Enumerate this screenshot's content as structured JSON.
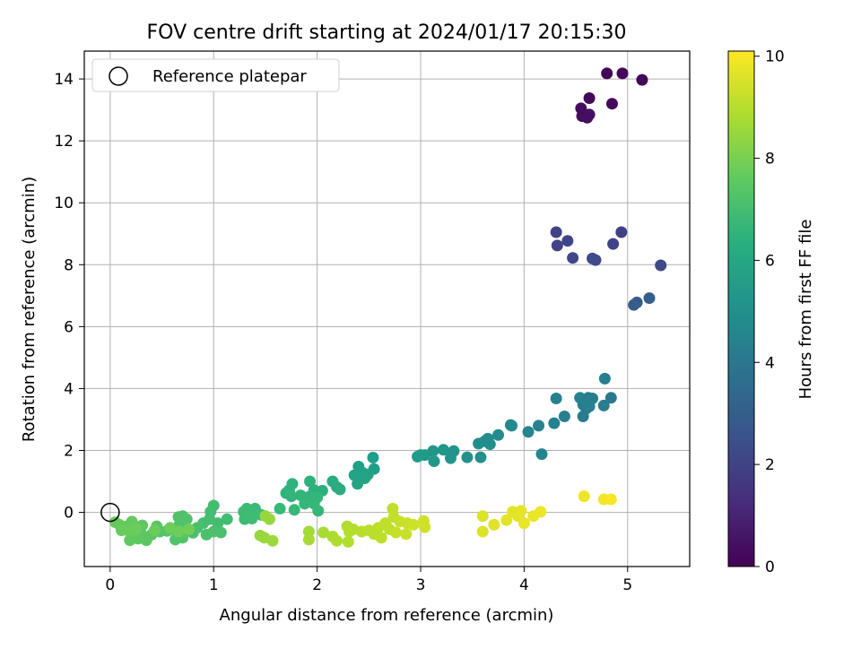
{
  "chart_data": {
    "type": "scatter",
    "title": "FOV centre drift starting at 2024/01/17 20:15:30",
    "xlabel": "Angular distance from reference (arcmin)",
    "ylabel": "Rotation from reference (arcmin)",
    "xlim": [
      -0.25,
      5.6
    ],
    "ylim": [
      -1.75,
      14.9
    ],
    "xticks": [
      "0",
      "1",
      "2",
      "3",
      "4",
      "5"
    ],
    "yticks": [
      "0",
      "2",
      "4",
      "6",
      "8",
      "10",
      "12",
      "14"
    ],
    "grid": true,
    "legend": {
      "location": "upper-left",
      "entries": [
        "Reference platepar"
      ]
    },
    "reference_point": {
      "x": 0,
      "y": 0
    },
    "colorbar": {
      "label": "Hours from first FF file",
      "colormap": "viridis",
      "range": [
        0,
        10.1
      ],
      "ticks": [
        "0",
        "2",
        "4",
        "6",
        "8",
        "10"
      ]
    },
    "points": [
      {
        "x": 4.8,
        "y": 14.18,
        "h": 0.1
      },
      {
        "x": 4.95,
        "y": 14.18,
        "h": 0.15
      },
      {
        "x": 5.14,
        "y": 13.97,
        "h": 0.2
      },
      {
        "x": 4.63,
        "y": 13.38,
        "h": 0.2
      },
      {
        "x": 4.85,
        "y": 13.2,
        "h": 0.25
      },
      {
        "x": 4.55,
        "y": 13.05,
        "h": 0.3
      },
      {
        "x": 4.56,
        "y": 12.8,
        "h": 0.3
      },
      {
        "x": 4.61,
        "y": 12.75,
        "h": 0.35
      },
      {
        "x": 4.63,
        "y": 12.85,
        "h": 0.4
      },
      {
        "x": 4.31,
        "y": 9.05,
        "h": 2.0
      },
      {
        "x": 4.32,
        "y": 8.62,
        "h": 2.05
      },
      {
        "x": 4.42,
        "y": 8.77,
        "h": 2.1
      },
      {
        "x": 4.47,
        "y": 8.22,
        "h": 2.15
      },
      {
        "x": 4.66,
        "y": 8.2,
        "h": 2.2
      },
      {
        "x": 4.69,
        "y": 8.15,
        "h": 2.25
      },
      {
        "x": 4.86,
        "y": 8.67,
        "h": 2.0
      },
      {
        "x": 4.94,
        "y": 9.05,
        "h": 1.95
      },
      {
        "x": 5.32,
        "y": 7.98,
        "h": 2.2
      },
      {
        "x": 5.06,
        "y": 6.7,
        "h": 2.9
      },
      {
        "x": 5.09,
        "y": 6.78,
        "h": 2.95
      },
      {
        "x": 5.21,
        "y": 6.92,
        "h": 3.0
      },
      {
        "x": 4.78,
        "y": 4.32,
        "h": 4.3
      },
      {
        "x": 4.84,
        "y": 3.7,
        "h": 4.1
      },
      {
        "x": 4.31,
        "y": 3.68,
        "h": 4.4
      },
      {
        "x": 4.54,
        "y": 3.7,
        "h": 4.5
      },
      {
        "x": 4.57,
        "y": 3.48,
        "h": 4.4
      },
      {
        "x": 4.62,
        "y": 3.7,
        "h": 4.3
      },
      {
        "x": 4.66,
        "y": 3.68,
        "h": 4.3
      },
      {
        "x": 4.6,
        "y": 3.35,
        "h": 4.35
      },
      {
        "x": 4.63,
        "y": 3.42,
        "h": 4.4
      },
      {
        "x": 4.77,
        "y": 3.45,
        "h": 4.3
      },
      {
        "x": 4.57,
        "y": 3.1,
        "h": 4.25
      },
      {
        "x": 4.39,
        "y": 3.1,
        "h": 4.4
      },
      {
        "x": 4.29,
        "y": 2.88,
        "h": 4.45
      },
      {
        "x": 4.14,
        "y": 2.8,
        "h": 4.5
      },
      {
        "x": 4.04,
        "y": 2.6,
        "h": 4.55
      },
      {
        "x": 4.17,
        "y": 1.88,
        "h": 4.6
      },
      {
        "x": 3.87,
        "y": 2.82,
        "h": 4.7
      },
      {
        "x": 3.88,
        "y": 2.8,
        "h": 4.75
      },
      {
        "x": 3.75,
        "y": 2.5,
        "h": 4.85
      },
      {
        "x": 3.65,
        "y": 2.38,
        "h": 4.9
      },
      {
        "x": 3.62,
        "y": 2.3,
        "h": 4.95
      },
      {
        "x": 3.67,
        "y": 2.2,
        "h": 5.0
      },
      {
        "x": 3.56,
        "y": 2.22,
        "h": 5.0
      },
      {
        "x": 3.58,
        "y": 1.78,
        "h": 5.05
      },
      {
        "x": 3.45,
        "y": 1.78,
        "h": 5.1
      },
      {
        "x": 3.32,
        "y": 1.98,
        "h": 5.2
      },
      {
        "x": 3.29,
        "y": 1.75,
        "h": 5.25
      },
      {
        "x": 3.22,
        "y": 2.02,
        "h": 5.3
      },
      {
        "x": 3.12,
        "y": 1.98,
        "h": 5.35
      },
      {
        "x": 3.13,
        "y": 1.65,
        "h": 5.4
      },
      {
        "x": 3.04,
        "y": 1.85,
        "h": 5.45
      },
      {
        "x": 3.0,
        "y": 1.85,
        "h": 5.5
      },
      {
        "x": 2.97,
        "y": 1.8,
        "h": 5.55
      },
      {
        "x": 2.54,
        "y": 1.77,
        "h": 5.6
      },
      {
        "x": 2.55,
        "y": 1.4,
        "h": 5.65
      },
      {
        "x": 2.4,
        "y": 1.48,
        "h": 5.7
      },
      {
        "x": 2.44,
        "y": 1.28,
        "h": 5.75
      },
      {
        "x": 2.49,
        "y": 1.22,
        "h": 5.8
      },
      {
        "x": 2.36,
        "y": 1.2,
        "h": 5.85
      },
      {
        "x": 2.39,
        "y": 0.92,
        "h": 5.9
      },
      {
        "x": 2.46,
        "y": 1.1,
        "h": 5.9
      },
      {
        "x": 2.15,
        "y": 1.0,
        "h": 6.2
      },
      {
        "x": 2.19,
        "y": 0.82,
        "h": 6.25
      },
      {
        "x": 2.22,
        "y": 0.74,
        "h": 6.3
      },
      {
        "x": 2.05,
        "y": 0.7,
        "h": 6.35
      },
      {
        "x": 1.97,
        "y": 0.72,
        "h": 6.4
      },
      {
        "x": 1.93,
        "y": 1.0,
        "h": 6.45
      },
      {
        "x": 1.76,
        "y": 0.92,
        "h": 6.5
      },
      {
        "x": 1.73,
        "y": 0.72,
        "h": 6.5
      },
      {
        "x": 1.7,
        "y": 0.62,
        "h": 6.55
      },
      {
        "x": 1.75,
        "y": 0.52,
        "h": 6.6
      },
      {
        "x": 1.84,
        "y": 0.55,
        "h": 6.6
      },
      {
        "x": 1.92,
        "y": 0.5,
        "h": 6.65
      },
      {
        "x": 1.88,
        "y": 0.28,
        "h": 6.7
      },
      {
        "x": 2.0,
        "y": 0.48,
        "h": 6.7
      },
      {
        "x": 2.01,
        "y": 0.05,
        "h": 6.75
      },
      {
        "x": 1.97,
        "y": 0.28,
        "h": 6.75
      },
      {
        "x": 1.78,
        "y": 0.08,
        "h": 6.8
      },
      {
        "x": 1.64,
        "y": 0.12,
        "h": 6.8
      },
      {
        "x": 1.4,
        "y": 0.12,
        "h": 6.85
      },
      {
        "x": 1.32,
        "y": 0.12,
        "h": 6.85
      },
      {
        "x": 1.3,
        "y": -0.22,
        "h": 6.9
      },
      {
        "x": 1.29,
        "y": 0.02,
        "h": 6.9
      },
      {
        "x": 1.46,
        "y": -0.08,
        "h": 6.9
      },
      {
        "x": 1.37,
        "y": -0.2,
        "h": 6.95
      },
      {
        "x": 1.13,
        "y": -0.22,
        "h": 7.0
      },
      {
        "x": 1.04,
        "y": -0.35,
        "h": 7.0
      },
      {
        "x": 1.0,
        "y": 0.22,
        "h": 7.05
      },
      {
        "x": 0.97,
        "y": 0.02,
        "h": 7.05
      },
      {
        "x": 0.96,
        "y": -0.22,
        "h": 7.1
      },
      {
        "x": 0.9,
        "y": -0.35,
        "h": 7.1
      },
      {
        "x": 0.84,
        "y": -0.5,
        "h": 7.15
      },
      {
        "x": 0.8,
        "y": -0.66,
        "h": 7.15
      },
      {
        "x": 0.93,
        "y": -0.72,
        "h": 7.2
      },
      {
        "x": 1.0,
        "y": -0.62,
        "h": 7.2
      },
      {
        "x": 1.07,
        "y": -0.65,
        "h": 7.2
      },
      {
        "x": 0.7,
        "y": -0.12,
        "h": 7.25
      },
      {
        "x": 0.66,
        "y": -0.15,
        "h": 7.25
      },
      {
        "x": 0.74,
        "y": -0.22,
        "h": 7.3
      },
      {
        "x": 0.67,
        "y": -0.4,
        "h": 7.3
      },
      {
        "x": 0.62,
        "y": -0.55,
        "h": 7.3
      },
      {
        "x": 0.7,
        "y": -0.82,
        "h": 7.35
      },
      {
        "x": 0.63,
        "y": -0.88,
        "h": 7.35
      },
      {
        "x": 0.55,
        "y": -0.6,
        "h": 7.4
      },
      {
        "x": 0.48,
        "y": -0.62,
        "h": 7.4
      },
      {
        "x": 0.45,
        "y": -0.45,
        "h": 7.45
      },
      {
        "x": 0.4,
        "y": -0.72,
        "h": 7.45
      },
      {
        "x": 0.35,
        "y": -0.9,
        "h": 7.5
      },
      {
        "x": 0.3,
        "y": -0.7,
        "h": 7.5
      },
      {
        "x": 0.31,
        "y": -0.42,
        "h": 7.55
      },
      {
        "x": 0.27,
        "y": -0.85,
        "h": 7.55
      },
      {
        "x": 0.22,
        "y": -0.65,
        "h": 7.6
      },
      {
        "x": 0.19,
        "y": -0.9,
        "h": 7.6
      },
      {
        "x": 0.21,
        "y": -0.3,
        "h": 7.65
      },
      {
        "x": 0.16,
        "y": -0.45,
        "h": 7.65
      },
      {
        "x": 0.09,
        "y": -0.4,
        "h": 7.7
      },
      {
        "x": 0.05,
        "y": -0.32,
        "h": 7.7
      },
      {
        "x": 0.11,
        "y": -0.58,
        "h": 7.75
      },
      {
        "x": 0.18,
        "y": -0.6,
        "h": 7.75
      },
      {
        "x": 0.25,
        "y": -0.55,
        "h": 7.8
      },
      {
        "x": 0.43,
        "y": -0.58,
        "h": 7.8
      },
      {
        "x": 0.58,
        "y": -0.5,
        "h": 7.85
      },
      {
        "x": 0.66,
        "y": -0.62,
        "h": 7.85
      },
      {
        "x": 0.76,
        "y": -0.55,
        "h": 7.9
      },
      {
        "x": 1.45,
        "y": -0.75,
        "h": 8.5
      },
      {
        "x": 1.49,
        "y": -0.82,
        "h": 8.55
      },
      {
        "x": 1.57,
        "y": -0.92,
        "h": 8.6
      },
      {
        "x": 1.5,
        "y": -0.12,
        "h": 8.5
      },
      {
        "x": 1.54,
        "y": -0.22,
        "h": 8.55
      },
      {
        "x": 1.92,
        "y": -0.62,
        "h": 8.7
      },
      {
        "x": 1.92,
        "y": -0.88,
        "h": 8.75
      },
      {
        "x": 2.06,
        "y": -0.65,
        "h": 8.8
      },
      {
        "x": 2.15,
        "y": -0.78,
        "h": 8.85
      },
      {
        "x": 2.19,
        "y": -0.92,
        "h": 8.9
      },
      {
        "x": 2.29,
        "y": -0.45,
        "h": 8.9
      },
      {
        "x": 2.31,
        "y": -0.62,
        "h": 8.95
      },
      {
        "x": 2.3,
        "y": -0.95,
        "h": 8.95
      },
      {
        "x": 2.35,
        "y": -0.55,
        "h": 9.0
      },
      {
        "x": 2.43,
        "y": -0.62,
        "h": 9.0
      },
      {
        "x": 2.5,
        "y": -0.58,
        "h": 9.05
      },
      {
        "x": 2.55,
        "y": -0.7,
        "h": 9.05
      },
      {
        "x": 2.59,
        "y": -0.5,
        "h": 9.1
      },
      {
        "x": 2.62,
        "y": -0.82,
        "h": 9.1
      },
      {
        "x": 2.66,
        "y": -0.35,
        "h": 9.15
      },
      {
        "x": 2.7,
        "y": -0.55,
        "h": 9.15
      },
      {
        "x": 2.73,
        "y": 0.12,
        "h": 9.2
      },
      {
        "x": 2.74,
        "y": -0.15,
        "h": 9.2
      },
      {
        "x": 2.76,
        "y": -0.65,
        "h": 9.25
      },
      {
        "x": 2.8,
        "y": -0.3,
        "h": 9.25
      },
      {
        "x": 2.86,
        "y": -0.7,
        "h": 9.3
      },
      {
        "x": 2.87,
        "y": -0.35,
        "h": 9.3
      },
      {
        "x": 2.93,
        "y": -0.4,
        "h": 9.35
      },
      {
        "x": 3.03,
        "y": -0.28,
        "h": 9.4
      },
      {
        "x": 3.04,
        "y": -0.48,
        "h": 9.4
      },
      {
        "x": 3.6,
        "y": -0.12,
        "h": 9.6
      },
      {
        "x": 3.6,
        "y": -0.62,
        "h": 9.6
      },
      {
        "x": 3.71,
        "y": -0.4,
        "h": 9.65
      },
      {
        "x": 3.83,
        "y": -0.25,
        "h": 9.7
      },
      {
        "x": 3.89,
        "y": 0.02,
        "h": 9.7
      },
      {
        "x": 3.94,
        "y": -0.12,
        "h": 9.75
      },
      {
        "x": 3.97,
        "y": 0.05,
        "h": 9.75
      },
      {
        "x": 4.0,
        "y": -0.35,
        "h": 9.8
      },
      {
        "x": 4.09,
        "y": -0.12,
        "h": 9.8
      },
      {
        "x": 4.16,
        "y": 0.02,
        "h": 9.85
      },
      {
        "x": 4.58,
        "y": 0.52,
        "h": 9.9
      },
      {
        "x": 4.77,
        "y": 0.42,
        "h": 9.95
      },
      {
        "x": 4.84,
        "y": 0.42,
        "h": 10.0
      }
    ]
  }
}
